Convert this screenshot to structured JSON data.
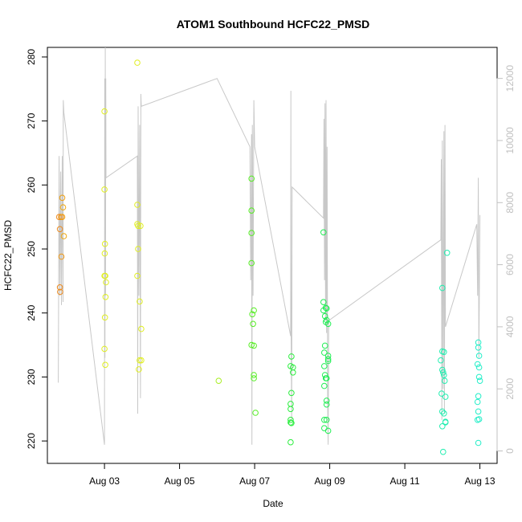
{
  "chart_data": {
    "type": "scatter",
    "title": "ATOM1 Southbound HCFC22_PMSD",
    "xlabel": "Date",
    "ylabel": "HCFC22_PMSD",
    "x_ticks": [
      "Aug 03",
      "Aug 05",
      "Aug 07",
      "Aug 09",
      "Aug 11",
      "Aug 13"
    ],
    "y_ticks": [
      "220",
      "230",
      "240",
      "250",
      "260",
      "270",
      "280"
    ],
    "y2_ticks": [
      "0",
      "2000",
      "4000",
      "6000",
      "8000",
      "10000",
      "12000"
    ],
    "xlim": [
      "Aug 01 11:30",
      "Aug 13 11:00"
    ],
    "ylim": [
      216.5,
      281.5
    ],
    "y2lim": [
      -400,
      13000
    ],
    "grid": false,
    "legend": "none",
    "secondary_axis": {
      "side": "right",
      "series_type": "line",
      "color": "#c8c8c8"
    },
    "series": [
      {
        "type": "points",
        "points": [
          {
            "x": "Aug 01 19:00",
            "y": 255.0,
            "c": "#ee8c20"
          },
          {
            "x": "Aug 01 19:30",
            "y": 253.1,
            "c": "#ee8c20"
          },
          {
            "x": "Aug 01 19:30",
            "y": 244.0,
            "c": "#ee8c20"
          },
          {
            "x": "Aug 01 19:40",
            "y": 243.3,
            "c": "#ee8c20"
          },
          {
            "x": "Aug 01 20:10",
            "y": 255.0,
            "c": "#f09018"
          },
          {
            "x": "Aug 01 20:30",
            "y": 248.8,
            "c": "#f09a18"
          },
          {
            "x": "Aug 01 21:00",
            "y": 258.0,
            "c": "#f0a010"
          },
          {
            "x": "Aug 01 21:00",
            "y": 255.0,
            "c": "#f0a010"
          },
          {
            "x": "Aug 01 21:30",
            "y": 256.5,
            "c": "#f0a810"
          },
          {
            "x": "Aug 01 22:00",
            "y": 252.0,
            "c": "#f0a810"
          },
          {
            "x": "Aug 03 00:00",
            "y": 271.5,
            "c": "#e0ee22"
          },
          {
            "x": "Aug 03 00:00",
            "y": 259.3,
            "c": "#e0ee22"
          },
          {
            "x": "Aug 03 00:20",
            "y": 250.8,
            "c": "#e0ee22"
          },
          {
            "x": "Aug 03 00:10",
            "y": 249.3,
            "c": "#e0ee22"
          },
          {
            "x": "Aug 03 00:00",
            "y": 245.8,
            "c": "#e0ee22"
          },
          {
            "x": "Aug 03 00:30",
            "y": 245.8,
            "c": "#e0ee22"
          },
          {
            "x": "Aug 03 01:00",
            "y": 244.8,
            "c": "#e0ee22"
          },
          {
            "x": "Aug 03 00:40",
            "y": 242.5,
            "c": "#e0ee22"
          },
          {
            "x": "Aug 03 00:20",
            "y": 239.3,
            "c": "#e0ee22"
          },
          {
            "x": "Aug 03 00:00",
            "y": 234.4,
            "c": "#e0ee22"
          },
          {
            "x": "Aug 03 00:30",
            "y": 231.9,
            "c": "#e0ee22"
          },
          {
            "x": "Aug 03 21:00",
            "y": 279.1,
            "c": "#e0ee22"
          },
          {
            "x": "Aug 03 21:00",
            "y": 256.9,
            "c": "#e0ee22"
          },
          {
            "x": "Aug 03 21:00",
            "y": 253.9,
            "c": "#e0ee22"
          },
          {
            "x": "Aug 03 21:30",
            "y": 253.6,
            "c": "#e0ee22"
          },
          {
            "x": "Aug 03 23:00",
            "y": 253.6,
            "c": "#e0ee22"
          },
          {
            "x": "Aug 03 21:30",
            "y": 250.0,
            "c": "#e0ee22"
          },
          {
            "x": "Aug 03 21:00",
            "y": 245.8,
            "c": "#e0ee22"
          },
          {
            "x": "Aug 03 22:30",
            "y": 241.8,
            "c": "#e0ee22"
          },
          {
            "x": "Aug 03 23:30",
            "y": 237.5,
            "c": "#e0ee22"
          },
          {
            "x": "Aug 03 22:30",
            "y": 232.6,
            "c": "#e0ee22"
          },
          {
            "x": "Aug 03 23:30",
            "y": 232.6,
            "c": "#e0ee22"
          },
          {
            "x": "Aug 03 22:00",
            "y": 231.2,
            "c": "#e0ee22"
          },
          {
            "x": "Aug 06 01:00",
            "y": 229.4,
            "c": "#a8ee22"
          },
          {
            "x": "Aug 06 22:00",
            "y": 261.0,
            "c": "#55ee22"
          },
          {
            "x": "Aug 06 22:00",
            "y": 256.0,
            "c": "#55ee22"
          },
          {
            "x": "Aug 06 22:00",
            "y": 252.5,
            "c": "#55ee22"
          },
          {
            "x": "Aug 06 22:00",
            "y": 247.8,
            "c": "#55ee22"
          },
          {
            "x": "Aug 06 23:30",
            "y": 240.4,
            "c": "#55ee22"
          },
          {
            "x": "Aug 06 22:30",
            "y": 239.8,
            "c": "#55ee22"
          },
          {
            "x": "Aug 06 23:00",
            "y": 238.3,
            "c": "#55ee22"
          },
          {
            "x": "Aug 06 22:00",
            "y": 235.0,
            "c": "#55ee22"
          },
          {
            "x": "Aug 06 23:30",
            "y": 234.9,
            "c": "#55ee22"
          },
          {
            "x": "Aug 06 23:30",
            "y": 230.3,
            "c": "#55ee22"
          },
          {
            "x": "Aug 06 23:30",
            "y": 229.8,
            "c": "#55ee22"
          },
          {
            "x": "Aug 07 00:30",
            "y": 224.4,
            "c": "#55ee22"
          },
          {
            "x": "Aug 07 23:30",
            "y": 233.2,
            "c": "#28ee3c"
          },
          {
            "x": "Aug 08 00:30",
            "y": 231.5,
            "c": "#28ee3c"
          },
          {
            "x": "Aug 08 00:30",
            "y": 230.7,
            "c": "#28ee3c"
          },
          {
            "x": "Aug 07 23:00",
            "y": 231.7,
            "c": "#28ee3c"
          },
          {
            "x": "Aug 07 23:30",
            "y": 227.5,
            "c": "#28ee3c"
          },
          {
            "x": "Aug 07 23:00",
            "y": 225.8,
            "c": "#28ee3c"
          },
          {
            "x": "Aug 07 23:00",
            "y": 225.0,
            "c": "#28ee3c"
          },
          {
            "x": "Aug 07 23:00",
            "y": 223.3,
            "c": "#28ee3c"
          },
          {
            "x": "Aug 07 23:30",
            "y": 222.8,
            "c": "#28ee3c"
          },
          {
            "x": "Aug 07 23:00",
            "y": 222.9,
            "c": "#28ee3c"
          },
          {
            "x": "Aug 07 23:00",
            "y": 219.8,
            "c": "#28ee3c"
          },
          {
            "x": "Aug 08 20:00",
            "y": 252.6,
            "c": "#22ee55"
          },
          {
            "x": "Aug 08 20:00",
            "y": 241.7,
            "c": "#22ee55"
          },
          {
            "x": "Aug 08 20:00",
            "y": 240.4,
            "c": "#22ee55"
          },
          {
            "x": "Aug 08 21:30",
            "y": 240.8,
            "c": "#22ee55"
          },
          {
            "x": "Aug 08 22:00",
            "y": 240.7,
            "c": "#22ee55"
          },
          {
            "x": "Aug 08 21:00",
            "y": 239.5,
            "c": "#22ee55"
          },
          {
            "x": "Aug 08 22:00",
            "y": 238.9,
            "c": "#22ee55"
          },
          {
            "x": "Aug 08 21:30",
            "y": 238.6,
            "c": "#22ee55"
          },
          {
            "x": "Aug 08 23:00",
            "y": 238.3,
            "c": "#22ee55"
          },
          {
            "x": "Aug 08 21:00",
            "y": 234.9,
            "c": "#22ee55"
          },
          {
            "x": "Aug 08 20:30",
            "y": 233.8,
            "c": "#22ee55"
          },
          {
            "x": "Aug 08 23:00",
            "y": 233.3,
            "c": "#22ee55"
          },
          {
            "x": "Aug 08 23:00",
            "y": 232.8,
            "c": "#22ee55"
          },
          {
            "x": "Aug 08 23:00",
            "y": 232.5,
            "c": "#22ee55"
          },
          {
            "x": "Aug 08 20:30",
            "y": 231.7,
            "c": "#22ee55"
          },
          {
            "x": "Aug 08 21:00",
            "y": 230.3,
            "c": "#22ee55"
          },
          {
            "x": "Aug 08 22:00",
            "y": 229.8,
            "c": "#22ee55"
          },
          {
            "x": "Aug 08 21:30",
            "y": 229.8,
            "c": "#22ee55"
          },
          {
            "x": "Aug 08 20:30",
            "y": 228.6,
            "c": "#22ee55"
          },
          {
            "x": "Aug 08 22:00",
            "y": 226.3,
            "c": "#22ee55"
          },
          {
            "x": "Aug 08 22:00",
            "y": 225.7,
            "c": "#22ee55"
          },
          {
            "x": "Aug 08 20:30",
            "y": 223.3,
            "c": "#22ee55"
          },
          {
            "x": "Aug 08 22:00",
            "y": 223.3,
            "c": "#22ee55"
          },
          {
            "x": "Aug 08 20:30",
            "y": 222.0,
            "c": "#22ee55"
          },
          {
            "x": "Aug 08 23:00",
            "y": 221.6,
            "c": "#22ee55"
          },
          {
            "x": "Aug 12 00:00",
            "y": 243.9,
            "c": "#22eeb0"
          },
          {
            "x": "Aug 12 00:00",
            "y": 234.0,
            "c": "#22eeb0"
          },
          {
            "x": "Aug 12 01:00",
            "y": 233.9,
            "c": "#22eeb0"
          },
          {
            "x": "Aug 11 23:00",
            "y": 232.6,
            "c": "#22eeb0"
          },
          {
            "x": "Aug 12 00:00",
            "y": 231.1,
            "c": "#22eeb0"
          },
          {
            "x": "Aug 12 00:30",
            "y": 230.7,
            "c": "#22eeb0"
          },
          {
            "x": "Aug 12 01:00",
            "y": 230.3,
            "c": "#22eeb0"
          },
          {
            "x": "Aug 12 01:30",
            "y": 229.4,
            "c": "#22eeb0"
          },
          {
            "x": "Aug 11 23:30",
            "y": 227.4,
            "c": "#22eeb0"
          },
          {
            "x": "Aug 12 02:00",
            "y": 226.9,
            "c": "#22eeb0"
          },
          {
            "x": "Aug 12 00:00",
            "y": 224.6,
            "c": "#22eeb0"
          },
          {
            "x": "Aug 12 01:00",
            "y": 224.3,
            "c": "#22eeb0"
          },
          {
            "x": "Aug 12 02:00",
            "y": 223.0,
            "c": "#22eeb0"
          },
          {
            "x": "Aug 12 02:00",
            "y": 222.9,
            "c": "#22eeb0"
          },
          {
            "x": "Aug 12 00:00",
            "y": 222.3,
            "c": "#22eeb0"
          },
          {
            "x": "Aug 12 00:30",
            "y": 218.3,
            "c": "#22eeb0"
          },
          {
            "x": "Aug 12 03:00",
            "y": 249.4,
            "c": "#22eeb0"
          },
          {
            "x": "Aug 12 23:00",
            "y": 235.4,
            "c": "#22eec8"
          },
          {
            "x": "Aug 12 23:00",
            "y": 234.6,
            "c": "#22eec8"
          },
          {
            "x": "Aug 12 23:30",
            "y": 233.3,
            "c": "#22eec8"
          },
          {
            "x": "Aug 12 22:30",
            "y": 232.0,
            "c": "#22eec8"
          },
          {
            "x": "Aug 12 23:30",
            "y": 231.5,
            "c": "#22eec8"
          },
          {
            "x": "Aug 12 23:30",
            "y": 230.0,
            "c": "#22eec8"
          },
          {
            "x": "Aug 13 00:00",
            "y": 229.4,
            "c": "#22eec8"
          },
          {
            "x": "Aug 12 23:00",
            "y": 227.0,
            "c": "#22eec8"
          },
          {
            "x": "Aug 12 22:30",
            "y": 226.1,
            "c": "#22eec8"
          },
          {
            "x": "Aug 12 23:00",
            "y": 224.6,
            "c": "#22eec8"
          },
          {
            "x": "Aug 12 23:30",
            "y": 223.4,
            "c": "#22eec8"
          },
          {
            "x": "Aug 12 22:30",
            "y": 223.3,
            "c": "#22eec8"
          },
          {
            "x": "Aug 12 23:00",
            "y": 219.7,
            "c": "#22eec8"
          }
        ]
      },
      {
        "type": "line",
        "axis": "right",
        "points": [
          {
            "x": "Aug 01 18:30",
            "y": 2200
          },
          {
            "x": "Aug 01 19:00",
            "y": 9500
          },
          {
            "x": "Aug 01 19:30",
            "y": 5000
          },
          {
            "x": "Aug 01 20:00",
            "y": 9000
          },
          {
            "x": "Aug 01 20:30",
            "y": 4700
          },
          {
            "x": "Aug 01 21:00",
            "y": 9500
          },
          {
            "x": "Aug 01 21:30",
            "y": 4800
          },
          {
            "x": "Aug 01 21:40",
            "y": 11300
          },
          {
            "x": "Aug 01 22:00",
            "y": 10900
          },
          {
            "x": "Aug 03 00:00",
            "y": 200
          },
          {
            "x": "Aug 03 00:10",
            "y": 12000
          },
          {
            "x": "Aug 03 00:20",
            "y": 3000
          },
          {
            "x": "Aug 03 00:30",
            "y": 13000
          },
          {
            "x": "Aug 03 00:40",
            "y": 5000
          },
          {
            "x": "Aug 03 00:50",
            "y": 12000
          },
          {
            "x": "Aug 03 01:00",
            "y": 8800
          },
          {
            "x": "Aug 03 21:00",
            "y": 9500
          },
          {
            "x": "Aug 03 21:15",
            "y": 1200
          },
          {
            "x": "Aug 03 21:30",
            "y": 11100
          },
          {
            "x": "Aug 03 22:00",
            "y": 5000
          },
          {
            "x": "Aug 03 22:30",
            "y": 10500
          },
          {
            "x": "Aug 03 23:00",
            "y": 1700
          },
          {
            "x": "Aug 03 23:15",
            "y": 11500
          },
          {
            "x": "Aug 03 23:30",
            "y": 11100
          },
          {
            "x": "Aug 06 00:00",
            "y": 12000
          },
          {
            "x": "Aug 06 21:00",
            "y": 9800
          },
          {
            "x": "Aug 06 21:30",
            "y": 5500
          },
          {
            "x": "Aug 06 22:00",
            "y": 10200
          },
          {
            "x": "Aug 06 22:15",
            "y": 200
          },
          {
            "x": "Aug 06 22:30",
            "y": 10500
          },
          {
            "x": "Aug 06 23:00",
            "y": 5000
          },
          {
            "x": "Aug 06 23:30",
            "y": 11300
          },
          {
            "x": "Aug 07 00:00",
            "y": 9800
          },
          {
            "x": "Aug 07 23:00",
            "y": 3700
          },
          {
            "x": "Aug 07 23:10",
            "y": 11600
          },
          {
            "x": "Aug 07 23:20",
            "y": 3800
          },
          {
            "x": "Aug 07 23:40",
            "y": 1000
          },
          {
            "x": "Aug 08 00:00",
            "y": 8500
          },
          {
            "x": "Aug 08 20:00",
            "y": 7500
          },
          {
            "x": "Aug 08 20:20",
            "y": 10700
          },
          {
            "x": "Aug 08 20:40",
            "y": 5500
          },
          {
            "x": "Aug 08 21:00",
            "y": 11200
          },
          {
            "x": "Aug 08 21:20",
            "y": 4200
          },
          {
            "x": "Aug 08 21:40",
            "y": 11300
          },
          {
            "x": "Aug 08 22:00",
            "y": 3800
          },
          {
            "x": "Aug 08 22:20",
            "y": 9800
          },
          {
            "x": "Aug 08 22:40",
            "y": 1500
          },
          {
            "x": "Aug 08 23:00",
            "y": 200
          },
          {
            "x": "Aug 08 23:20",
            "y": 4200
          },
          {
            "x": "Aug 11 23:00",
            "y": 6800
          },
          {
            "x": "Aug 11 23:20",
            "y": 9400
          },
          {
            "x": "Aug 11 23:40",
            "y": 1000
          },
          {
            "x": "Aug 12 00:00",
            "y": 10000
          },
          {
            "x": "Aug 12 00:30",
            "y": 2000
          },
          {
            "x": "Aug 12 01:00",
            "y": 10300
          },
          {
            "x": "Aug 12 01:20",
            "y": 1200
          },
          {
            "x": "Aug 12 01:40",
            "y": 10500
          },
          {
            "x": "Aug 12 02:00",
            "y": 4000
          },
          {
            "x": "Aug 12 22:00",
            "y": 7300
          },
          {
            "x": "Aug 12 22:30",
            "y": 5000
          },
          {
            "x": "Aug 12 23:00",
            "y": 8800
          },
          {
            "x": "Aug 12 23:20",
            "y": 3000
          },
          {
            "x": "Aug 13 00:00",
            "y": 7600
          }
        ]
      }
    ]
  }
}
